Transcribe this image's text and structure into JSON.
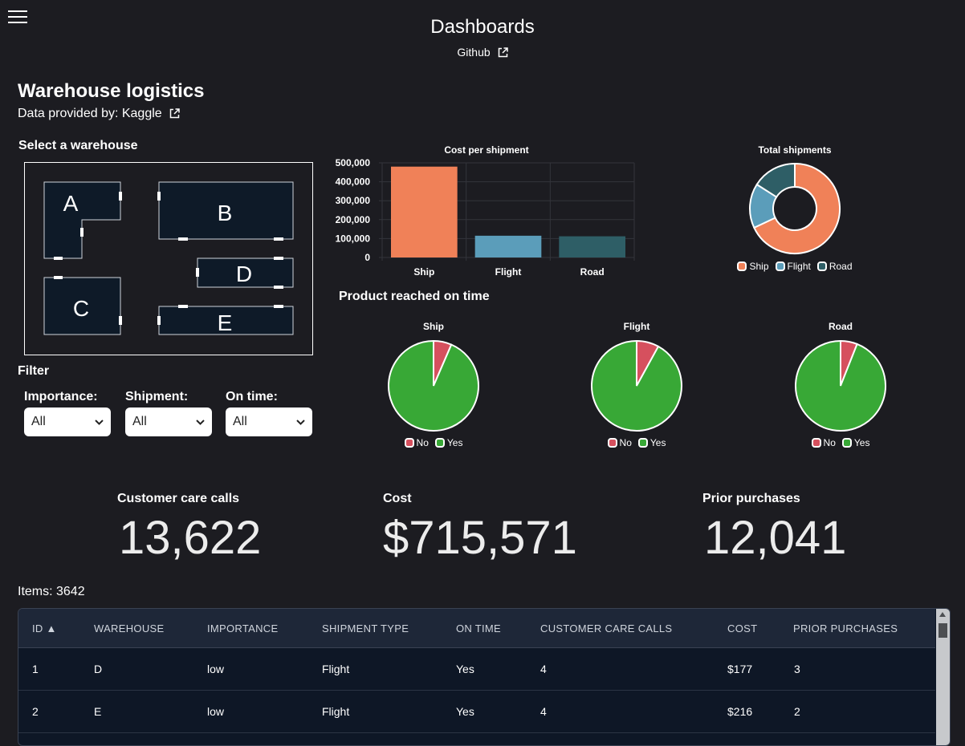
{
  "header": {
    "title": "Dashboards",
    "github_label": "Github"
  },
  "page": {
    "title": "Warehouse logistics",
    "provided_prefix": "Data provided by:",
    "provided_link": "Kaggle"
  },
  "warehouse_select": {
    "label": "Select a warehouse",
    "warehouses": [
      "A",
      "B",
      "C",
      "D",
      "E"
    ]
  },
  "filter": {
    "label": "Filter",
    "importance": {
      "label": "Importance:",
      "value": "All"
    },
    "shipment": {
      "label": "Shipment:",
      "value": "All"
    },
    "on_time": {
      "label": "On time:",
      "value": "All"
    }
  },
  "colors": {
    "ship": "#f08158",
    "flight": "#5b9dba",
    "road": "#2e5e66",
    "no": "#d6505e",
    "yes": "#38a836"
  },
  "chart_data": [
    {
      "type": "bar",
      "title": "Cost per shipment",
      "categories": [
        "Ship",
        "Flight",
        "Road"
      ],
      "values": [
        480000,
        115000,
        112000
      ],
      "ylim": [
        0,
        500000
      ],
      "yticks": [
        "500,000",
        "400,000",
        "300,000",
        "200,000",
        "100,000",
        "0"
      ],
      "grid": true
    },
    {
      "type": "pie",
      "title": "Total shipments",
      "labels": [
        "Ship",
        "Flight",
        "Road"
      ],
      "values": [
        0.68,
        0.16,
        0.16
      ],
      "donut": true
    },
    {
      "type": "pie",
      "title": "Ship",
      "labels": [
        "No",
        "Yes"
      ],
      "values": [
        0.065,
        0.935
      ]
    },
    {
      "type": "pie",
      "title": "Flight",
      "labels": [
        "No",
        "Yes"
      ],
      "values": [
        0.08,
        0.92
      ]
    },
    {
      "type": "pie",
      "title": "Road",
      "labels": [
        "No",
        "Yes"
      ],
      "values": [
        0.06,
        0.94
      ]
    }
  ],
  "on_time_section": {
    "title": "Product reached on time"
  },
  "legend": {
    "ship": "Ship",
    "flight": "Flight",
    "road": "Road",
    "no": "No",
    "yes": "Yes"
  },
  "kpis": {
    "calls": {
      "label": "Customer care calls",
      "value": "13,622"
    },
    "cost": {
      "label": "Cost",
      "value": "$715,571"
    },
    "prior": {
      "label": "Prior purchases",
      "value": "12,041"
    }
  },
  "table": {
    "items_count": "Items: 3642",
    "columns": [
      "ID ▲",
      "WAREHOUSE",
      "IMPORTANCE",
      "SHIPMENT TYPE",
      "ON TIME",
      "CUSTOMER CARE CALLS",
      "COST",
      "PRIOR PURCHASES"
    ],
    "rows": [
      [
        "1",
        "D",
        "low",
        "Flight",
        "Yes",
        "4",
        "$177",
        "3"
      ],
      [
        "2",
        "E",
        "low",
        "Flight",
        "Yes",
        "4",
        "$216",
        "2"
      ]
    ]
  }
}
